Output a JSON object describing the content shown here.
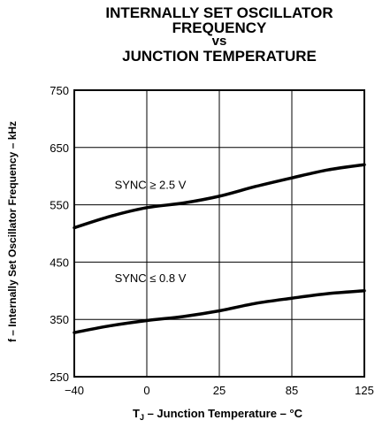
{
  "chart_data": {
    "type": "line",
    "title_lines": [
      "INTERNALLY SET OSCILLATOR",
      "FREQUENCY",
      "vs",
      "JUNCTION TEMPERATURE"
    ],
    "ylabel": "f – Internally Set Oscillator Frequency – kHz",
    "xlabel": "T_J – Junction Temperature – °C",
    "xlabel_parts": {
      "pre": "T",
      "sub": "J",
      "post": " – Junction Temperature – °C"
    },
    "x_categories": [
      "−40",
      "0",
      "25",
      "85",
      "125"
    ],
    "y_ticks": [
      250,
      350,
      450,
      550,
      650,
      750
    ],
    "ylim": [
      250,
      750
    ],
    "grid": true,
    "series": [
      {
        "name": "SYNC ≥ 2.5 V",
        "x": [
          0,
          0.5,
          1,
          1.5,
          2,
          2.5,
          3,
          3.5,
          4
        ],
        "y": [
          510,
          530,
          545,
          553,
          565,
          582,
          597,
          611,
          620
        ]
      },
      {
        "name": "SYNC ≤ 0.8 V",
        "x": [
          0,
          0.5,
          1,
          1.5,
          2,
          2.5,
          3,
          3.5,
          4
        ],
        "y": [
          327,
          339,
          348,
          355,
          365,
          378,
          387,
          395,
          400
        ]
      }
    ]
  }
}
